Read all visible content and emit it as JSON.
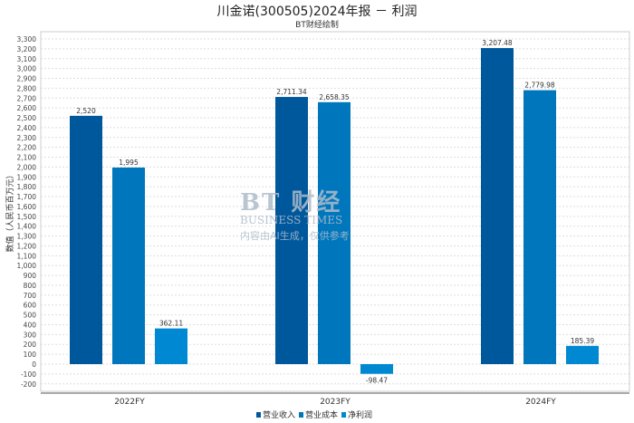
{
  "chart_data": {
    "type": "bar",
    "title": "川金诺(300505)2024年报 － 利润",
    "subtitle": "BT财经绘制",
    "ylabel": "数值（人民币百万元）",
    "xlabel": "",
    "categories": [
      "2022FY",
      "2023FY",
      "2024FY"
    ],
    "series": [
      {
        "name": "营业收入",
        "color": "#00589c",
        "values": [
          2520,
          2711.34,
          3207.48
        ],
        "labels": [
          "2,520",
          "2,711.34",
          "3,207.48"
        ]
      },
      {
        "name": "营业成本",
        "color": "#0077bd",
        "values": [
          1995,
          2658.35,
          2779.98
        ],
        "labels": [
          "1,995",
          "2,658.35",
          "2,779.98"
        ]
      },
      {
        "name": "净利润",
        "color": "#0089d2",
        "values": [
          362.11,
          -98.47,
          185.39
        ],
        "labels": [
          "362.11",
          "-98.47",
          "185.39"
        ]
      }
    ],
    "ylim": [
      -200,
      3300
    ],
    "ytick_step": 100,
    "grid": true,
    "legend_position": "bottom-center"
  },
  "watermark": {
    "brand": "BT 财经",
    "sub": "BUSINESS TIMES",
    "note": "内容由AI生成，仅供参考"
  }
}
